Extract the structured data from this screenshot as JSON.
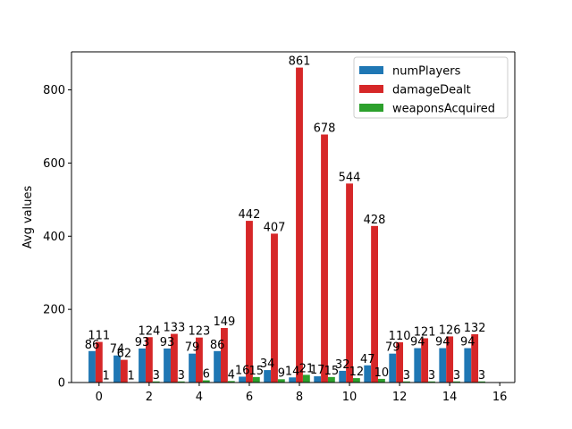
{
  "chart_data": {
    "type": "bar",
    "x": [
      0,
      1,
      2,
      3,
      4,
      5,
      6,
      7,
      8,
      9,
      10,
      11,
      12,
      13,
      14,
      15
    ],
    "series": [
      {
        "name": "numPlayers",
        "color": "#1f77b4",
        "values": [
          86,
          74,
          93,
          93,
          79,
          86,
          16,
          34,
          14,
          17,
          32,
          47,
          79,
          94,
          94,
          94
        ]
      },
      {
        "name": "damageDealt",
        "color": "#d62728",
        "values": [
          111,
          62,
          124,
          133,
          123,
          149,
          442,
          407,
          861,
          678,
          544,
          428,
          110,
          121,
          126,
          132
        ]
      },
      {
        "name": "weaponsAcquired",
        "color": "#2ca02c",
        "values": [
          1,
          1,
          3,
          3,
          6,
          4,
          15,
          9,
          21,
          15,
          12,
          10,
          3,
          3,
          3,
          3
        ]
      }
    ],
    "data_labels": [
      [
        "86",
        "74",
        "93",
        "93",
        "79",
        "86",
        "16",
        "34",
        "14",
        "17",
        "32",
        "47",
        "79",
        "94",
        "94",
        "94"
      ],
      [
        "111",
        "62",
        "124",
        "133",
        "123",
        "149",
        "442",
        "407",
        "861",
        "678",
        "544",
        "428",
        "110",
        "121",
        "126",
        "132"
      ],
      [
        "1",
        "1",
        "3",
        "3",
        "6",
        "4",
        "15",
        "9",
        "21",
        "15",
        "12",
        "10",
        "3",
        "3",
        "3",
        "3"
      ]
    ],
    "xlabel": "",
    "ylabel": "Avg values",
    "xlim": [
      -1.1,
      16.6
    ],
    "ylim": [
      0,
      904
    ],
    "xticks": [
      0,
      2,
      4,
      6,
      8,
      10,
      12,
      14,
      16
    ],
    "yticks": [
      0,
      200,
      400,
      600,
      800
    ],
    "grid": false,
    "legend_position": "top-right"
  }
}
